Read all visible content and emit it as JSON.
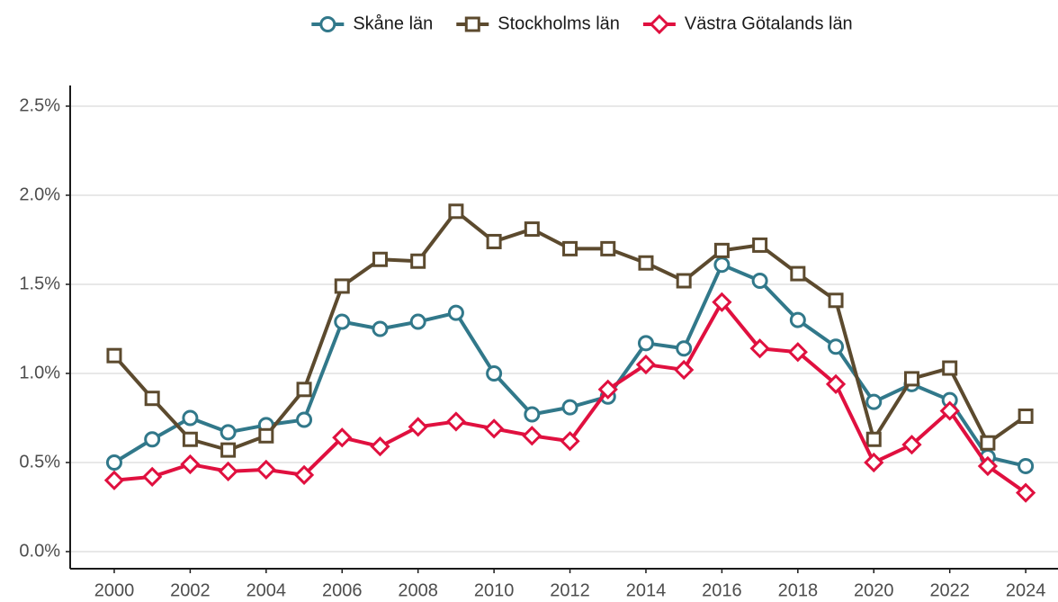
{
  "chart_data": {
    "type": "line",
    "x": [
      2000,
      2001,
      2002,
      2003,
      2004,
      2005,
      2006,
      2007,
      2008,
      2009,
      2010,
      2011,
      2012,
      2013,
      2014,
      2015,
      2016,
      2017,
      2018,
      2019,
      2020,
      2021,
      2022,
      2023,
      2024
    ],
    "series": [
      {
        "name": "Skåne län",
        "color": "#31788a",
        "marker": "circle",
        "values": [
          0.5,
          0.63,
          0.75,
          0.67,
          0.71,
          0.74,
          1.29,
          1.25,
          1.29,
          1.34,
          1.0,
          0.77,
          0.81,
          0.87,
          1.17,
          1.14,
          1.61,
          1.52,
          1.3,
          1.15,
          0.84,
          0.94,
          0.85,
          0.53,
          0.48
        ]
      },
      {
        "name": "Stockholms län",
        "color": "#5c4a2e",
        "marker": "square",
        "values": [
          1.1,
          0.86,
          0.63,
          0.57,
          0.65,
          0.91,
          1.49,
          1.64,
          1.63,
          1.91,
          1.74,
          1.81,
          1.7,
          1.7,
          1.62,
          1.52,
          1.69,
          1.72,
          1.56,
          1.41,
          0.63,
          0.97,
          1.03,
          0.61,
          0.76
        ]
      },
      {
        "name": "Västra Götalands län",
        "color": "#e0103f",
        "marker": "diamond",
        "values": [
          0.4,
          0.42,
          0.49,
          0.45,
          0.46,
          0.43,
          0.64,
          0.59,
          0.7,
          0.73,
          0.69,
          0.65,
          0.62,
          0.91,
          1.05,
          1.02,
          1.4,
          1.14,
          1.12,
          0.94,
          0.5,
          0.6,
          0.79,
          0.48,
          0.33
        ]
      }
    ],
    "xlim": [
      1998.84,
      2024.85
    ],
    "xticks": [
      2000,
      2002,
      2004,
      2006,
      2008,
      2010,
      2012,
      2014,
      2016,
      2018,
      2020,
      2022,
      2024
    ],
    "ylim": [
      -0.096,
      2.616
    ],
    "yticks": [
      {
        "value": 0,
        "label": "0.0%"
      },
      {
        "value": 0.5,
        "label": "0.5%"
      },
      {
        "value": 1.0,
        "label": "1.0%"
      },
      {
        "value": 1.5,
        "label": "1.5%"
      },
      {
        "value": 2.0,
        "label": "2.0%"
      },
      {
        "value": 2.5,
        "label": "2.5%"
      }
    ],
    "grid": true,
    "legend": "top"
  }
}
